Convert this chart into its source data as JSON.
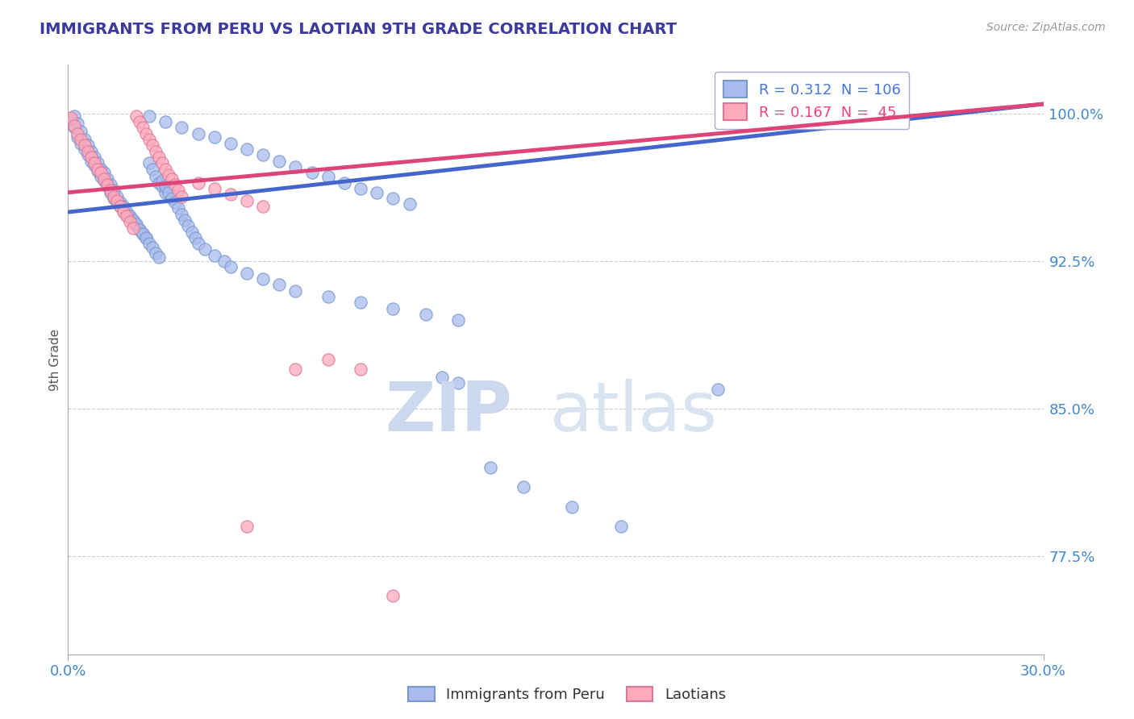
{
  "title": "IMMIGRANTS FROM PERU VS LAOTIAN 9TH GRADE CORRELATION CHART",
  "title_color": "#3a3a9f",
  "source_text": "Source: ZipAtlas.com",
  "ylabel": "9th Grade",
  "ylabel_color": "#555555",
  "xmin": 0.0,
  "xmax": 0.3,
  "ymin": 0.725,
  "ymax": 1.025,
  "ytick_labels": [
    "77.5%",
    "85.0%",
    "92.5%",
    "100.0%"
  ],
  "ytick_values": [
    0.775,
    0.85,
    0.925,
    1.0
  ],
  "xtick_labels": [
    "0.0%",
    "30.0%"
  ],
  "xtick_values": [
    0.0,
    0.3
  ],
  "legend_entries": [
    {
      "label": "R = 0.312  N = 106",
      "color": "#4477dd"
    },
    {
      "label": "R = 0.167  N =  45",
      "color": "#ee4477"
    }
  ],
  "blue_scatter_x": [
    0.001,
    0.002,
    0.003,
    0.004,
    0.005,
    0.006,
    0.007,
    0.008,
    0.009,
    0.01,
    0.011,
    0.012,
    0.013,
    0.014,
    0.015,
    0.016,
    0.017,
    0.018,
    0.019,
    0.02,
    0.021,
    0.022,
    0.023,
    0.024,
    0.025,
    0.026,
    0.027,
    0.028,
    0.029,
    0.03,
    0.002,
    0.003,
    0.004,
    0.005,
    0.006,
    0.007,
    0.008,
    0.009,
    0.01,
    0.011,
    0.012,
    0.013,
    0.014,
    0.015,
    0.016,
    0.017,
    0.018,
    0.019,
    0.02,
    0.021,
    0.022,
    0.023,
    0.024,
    0.025,
    0.026,
    0.027,
    0.028,
    0.029,
    0.03,
    0.031,
    0.032,
    0.033,
    0.034,
    0.035,
    0.036,
    0.037,
    0.038,
    0.039,
    0.04,
    0.042,
    0.045,
    0.048,
    0.05,
    0.055,
    0.06,
    0.065,
    0.07,
    0.08,
    0.09,
    0.1,
    0.11,
    0.12,
    0.025,
    0.03,
    0.035,
    0.04,
    0.045,
    0.05,
    0.055,
    0.06,
    0.065,
    0.07,
    0.075,
    0.08,
    0.085,
    0.09,
    0.095,
    0.1,
    0.105,
    0.115,
    0.12,
    0.13,
    0.14,
    0.155,
    0.17,
    0.2
  ],
  "blue_scatter_y": [
    0.997,
    0.993,
    0.988,
    0.985,
    0.982,
    0.979,
    0.976,
    0.974,
    0.971,
    0.968,
    0.966,
    0.963,
    0.96,
    0.957,
    0.955,
    0.953,
    0.951,
    0.949,
    0.947,
    0.945,
    0.943,
    0.941,
    0.939,
    0.937,
    0.975,
    0.972,
    0.968,
    0.965,
    0.963,
    0.96,
    0.999,
    0.995,
    0.991,
    0.987,
    0.984,
    0.981,
    0.978,
    0.975,
    0.972,
    0.97,
    0.967,
    0.964,
    0.961,
    0.958,
    0.955,
    0.953,
    0.95,
    0.948,
    0.946,
    0.944,
    0.941,
    0.939,
    0.937,
    0.934,
    0.932,
    0.929,
    0.927,
    0.966,
    0.963,
    0.96,
    0.957,
    0.955,
    0.952,
    0.949,
    0.946,
    0.943,
    0.94,
    0.937,
    0.934,
    0.931,
    0.928,
    0.925,
    0.922,
    0.919,
    0.916,
    0.913,
    0.91,
    0.907,
    0.904,
    0.901,
    0.898,
    0.895,
    0.999,
    0.996,
    0.993,
    0.99,
    0.988,
    0.985,
    0.982,
    0.979,
    0.976,
    0.973,
    0.97,
    0.968,
    0.965,
    0.962,
    0.96,
    0.957,
    0.954,
    0.866,
    0.863,
    0.82,
    0.81,
    0.8,
    0.79,
    0.86
  ],
  "pink_scatter_x": [
    0.001,
    0.002,
    0.003,
    0.004,
    0.005,
    0.006,
    0.007,
    0.008,
    0.009,
    0.01,
    0.011,
    0.012,
    0.013,
    0.014,
    0.015,
    0.016,
    0.017,
    0.018,
    0.019,
    0.02,
    0.021,
    0.022,
    0.023,
    0.024,
    0.025,
    0.026,
    0.027,
    0.028,
    0.029,
    0.03,
    0.031,
    0.032,
    0.033,
    0.034,
    0.035,
    0.04,
    0.045,
    0.05,
    0.055,
    0.06,
    0.07,
    0.08,
    0.09,
    0.055,
    0.1
  ],
  "pink_scatter_y": [
    0.998,
    0.994,
    0.99,
    0.987,
    0.984,
    0.981,
    0.978,
    0.975,
    0.972,
    0.97,
    0.967,
    0.964,
    0.961,
    0.958,
    0.956,
    0.953,
    0.95,
    0.948,
    0.945,
    0.942,
    0.999,
    0.996,
    0.993,
    0.99,
    0.987,
    0.984,
    0.981,
    0.978,
    0.975,
    0.972,
    0.969,
    0.967,
    0.964,
    0.961,
    0.958,
    0.965,
    0.962,
    0.959,
    0.956,
    0.953,
    0.87,
    0.875,
    0.87,
    0.79,
    0.755
  ],
  "blue_line_x": [
    0.0,
    0.3
  ],
  "blue_line_y": [
    0.95,
    1.005
  ],
  "pink_line_x": [
    0.0,
    0.3
  ],
  "pink_line_y": [
    0.96,
    1.005
  ],
  "blue_color": "#4466cc",
  "pink_color": "#dd4477",
  "blue_scatter_facecolor": "#aabbee",
  "blue_scatter_edgecolor": "#7799cc",
  "pink_scatter_facecolor": "#ffaabb",
  "pink_scatter_edgecolor": "#dd7799",
  "grid_color": "#cccccc",
  "background_color": "#ffffff"
}
